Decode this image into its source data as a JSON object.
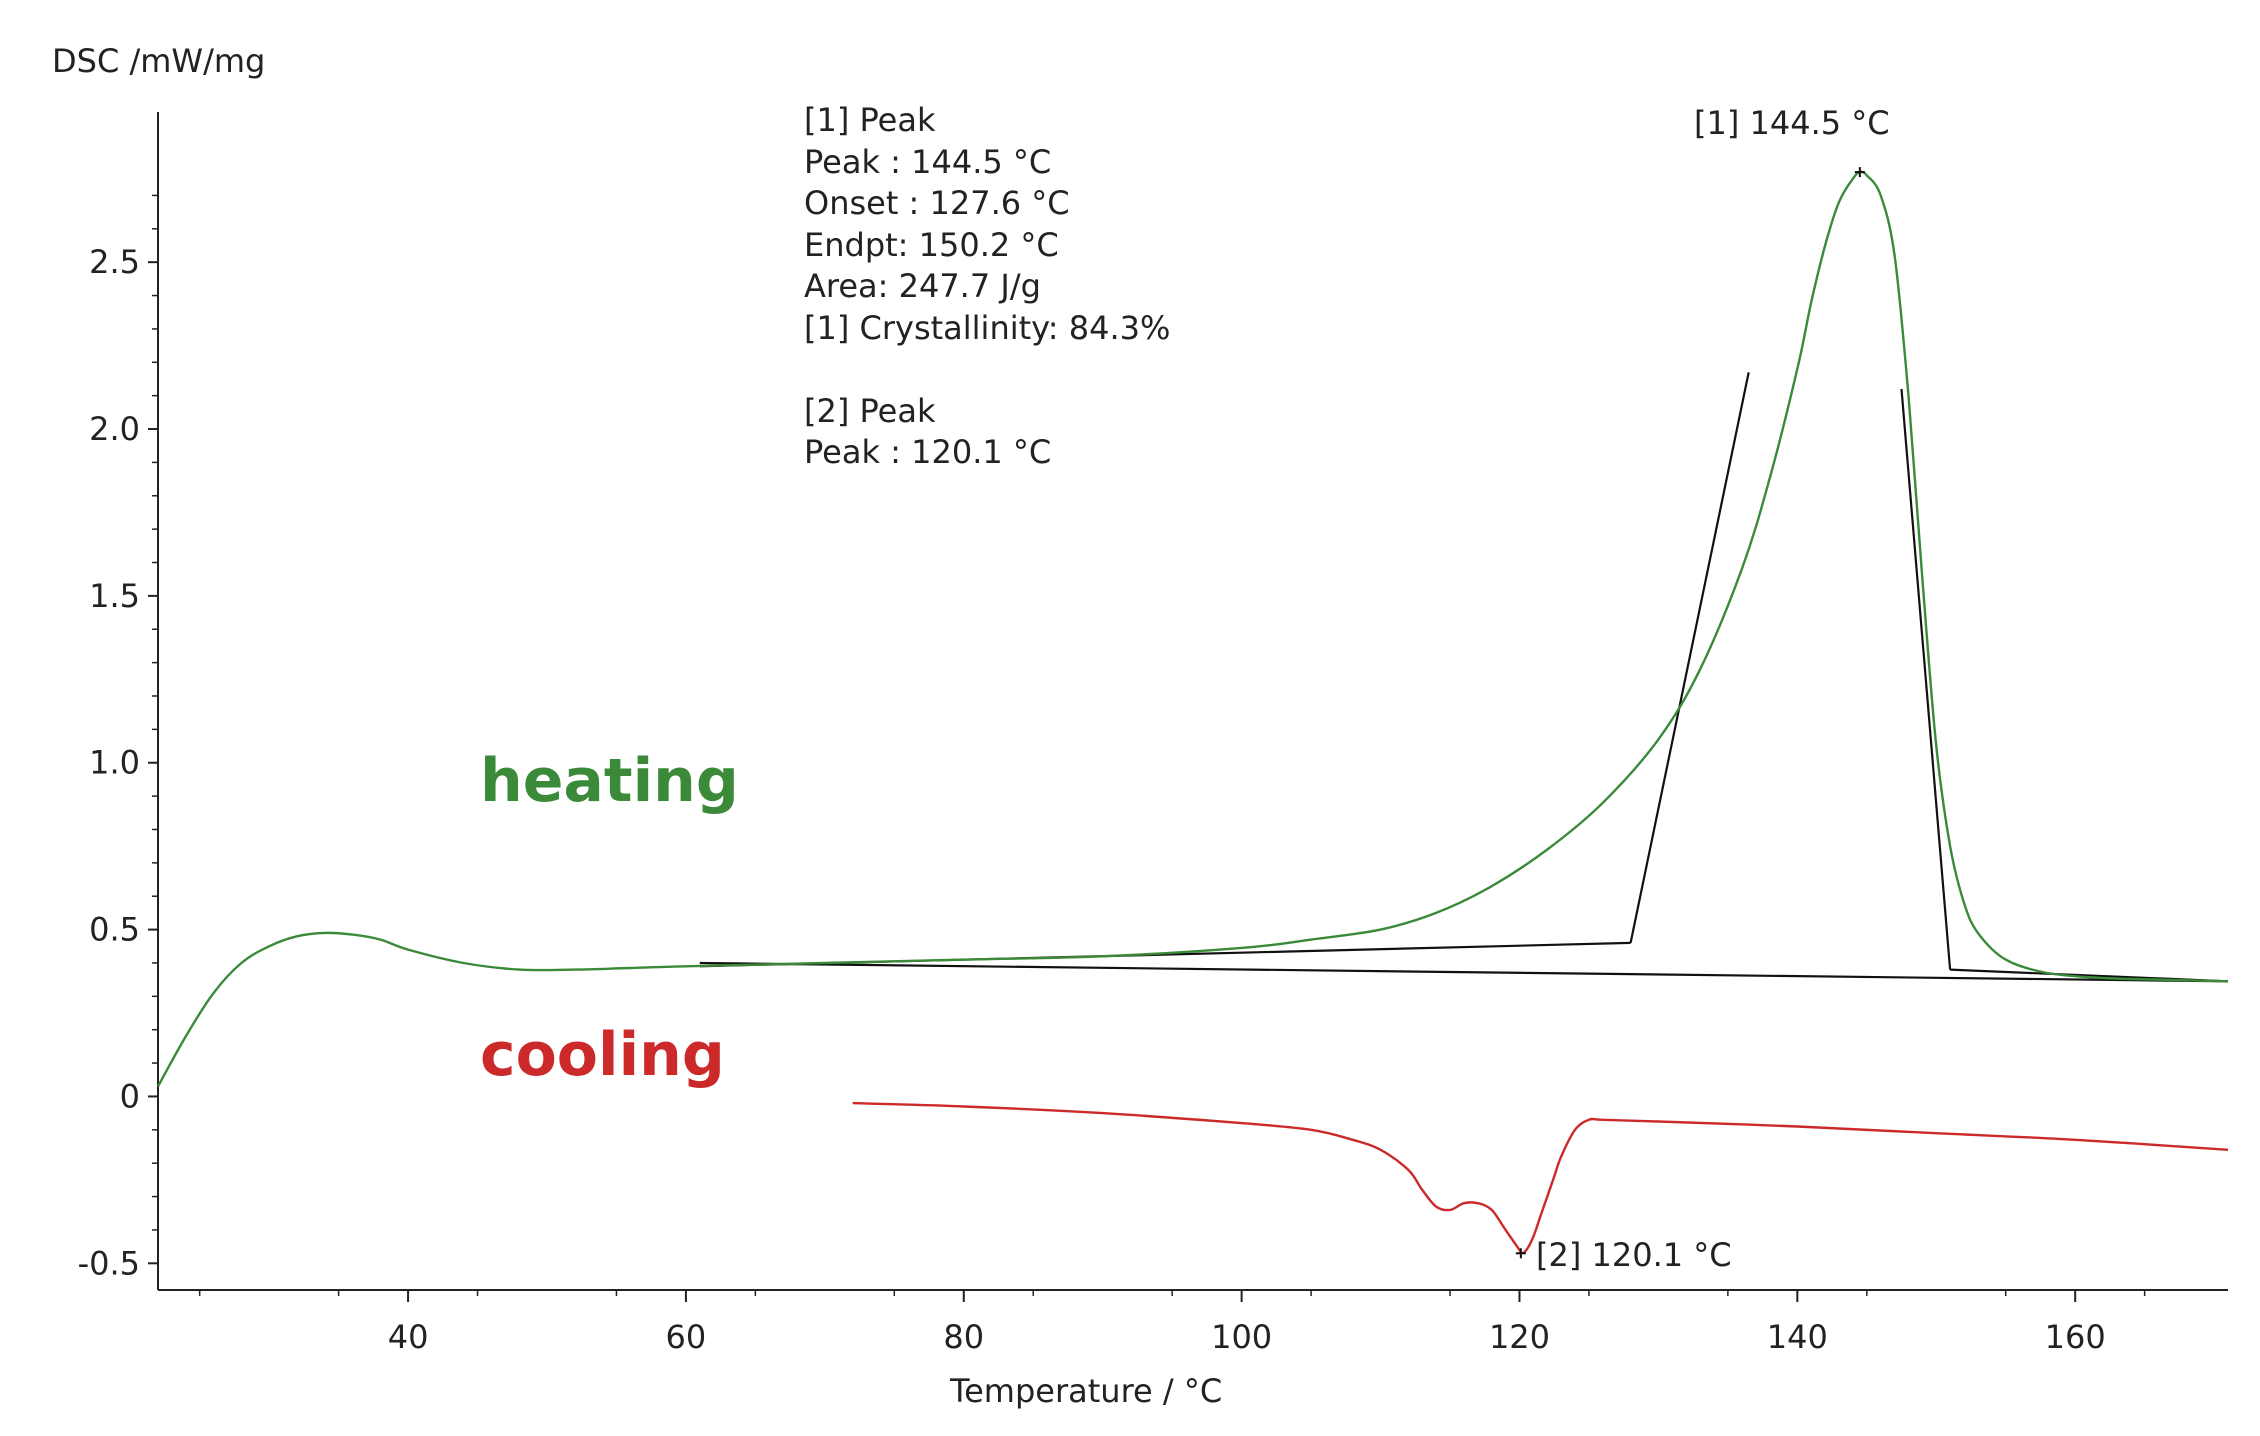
{
  "chart_data": {
    "type": "line",
    "ylabel": "DSC /mW/mg",
    "xlabel": "Temperature / °C",
    "xlim": [
      22,
      171
    ],
    "ylim": [
      -0.58,
      2.95
    ],
    "x_ticks": [
      "40",
      "60",
      "80",
      "100",
      "120",
      "140",
      "160"
    ],
    "y_ticks": [
      "2.5",
      "2.0",
      "1.5",
      "1.0",
      "0.5",
      "0",
      "-0.5"
    ],
    "series": [
      {
        "name": "heating",
        "color": "#3a8a3a",
        "x": [
          22,
          24,
          26,
          28,
          30,
          32,
          34,
          36,
          38,
          40,
          44,
          48,
          52,
          56,
          60,
          70,
          80,
          90,
          100,
          105,
          110,
          114,
          118,
          122,
          126,
          130,
          133,
          136,
          138,
          140,
          141,
          142,
          143,
          144,
          144.5,
          145,
          146,
          147,
          148,
          149,
          150,
          151,
          152,
          153,
          155,
          158,
          162,
          166,
          171
        ],
        "values": [
          0.03,
          0.18,
          0.31,
          0.4,
          0.45,
          0.48,
          0.49,
          0.485,
          0.47,
          0.44,
          0.4,
          0.38,
          0.38,
          0.385,
          0.39,
          0.4,
          0.41,
          0.42,
          0.445,
          0.47,
          0.5,
          0.55,
          0.63,
          0.74,
          0.88,
          1.07,
          1.28,
          1.58,
          1.85,
          2.18,
          2.38,
          2.55,
          2.68,
          2.75,
          2.77,
          2.76,
          2.7,
          2.52,
          2.1,
          1.55,
          1.05,
          0.75,
          0.58,
          0.49,
          0.41,
          0.37,
          0.355,
          0.35,
          0.345
        ]
      },
      {
        "name": "cooling",
        "color": "#cc2a2a",
        "x": [
          72,
          80,
          90,
          100,
          105,
          108,
          110,
          112,
          113,
          114,
          115,
          116,
          117,
          118,
          119,
          120,
          120.1,
          120.5,
          121,
          121.5,
          122,
          122.5,
          123,
          124,
          125,
          126,
          130,
          140,
          150,
          160,
          171
        ],
        "values": [
          -0.02,
          -0.03,
          -0.05,
          -0.08,
          -0.1,
          -0.13,
          -0.16,
          -0.22,
          -0.28,
          -0.33,
          -0.34,
          -0.32,
          -0.32,
          -0.34,
          -0.4,
          -0.46,
          -0.47,
          -0.46,
          -0.42,
          -0.36,
          -0.3,
          -0.24,
          -0.18,
          -0.1,
          -0.07,
          -0.07,
          -0.075,
          -0.09,
          -0.11,
          -0.13,
          -0.16
        ]
      }
    ],
    "analysis_lines": [
      {
        "name": "baseline",
        "x": [
          61,
          171
        ],
        "values": [
          0.4,
          0.345
        ]
      },
      {
        "name": "onset-baseline",
        "x": [
          61,
          128
        ],
        "values": [
          0.39,
          0.46
        ]
      },
      {
        "name": "onset-tangent",
        "x": [
          128,
          136.5
        ],
        "values": [
          0.46,
          2.17
        ]
      },
      {
        "name": "endset-tangent",
        "x": [
          147.5,
          151
        ],
        "values": [
          2.12,
          0.38
        ]
      },
      {
        "name": "endset-baseline",
        "x": [
          151,
          171
        ],
        "values": [
          0.38,
          0.345
        ]
      }
    ],
    "markers": [
      {
        "name": "peak-1",
        "x": 144.5,
        "y": 2.77
      },
      {
        "name": "peak-2",
        "x": 120.1,
        "y": -0.47
      }
    ],
    "info_box": [
      "[1] Peak",
      "Peak : 144.5 °C",
      "Onset : 127.6 °C",
      "Endpt: 150.2 °C",
      "Area: 247.7 J/g",
      "[1] Crystallinity: 84.3%",
      "[2] Peak",
      "Peak : 120.1 °C"
    ],
    "annotations": {
      "peak1": "[1] 144.5 °C",
      "peak2": "[2] 120.1 °C"
    },
    "labels": {
      "heating": "heating",
      "cooling": "cooling"
    },
    "colors": {
      "heating": "#3a8a3a",
      "cooling": "#cc2a2a",
      "analysis": "#111111"
    }
  }
}
